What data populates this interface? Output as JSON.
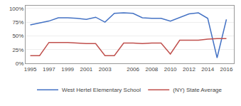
{
  "chart_data": {
    "type": "line",
    "series": [
      {
        "name": "West Hertel Elementary School",
        "color": "#4472c4",
        "x": [
          1995,
          1997,
          1998,
          1999,
          2000,
          2001,
          2002,
          2003,
          2004,
          2005,
          2006,
          2007,
          2008,
          2009,
          2010,
          2011,
          2012,
          2013,
          2014,
          2015,
          2016
        ],
        "values": [
          70,
          77,
          83,
          83,
          82,
          80,
          84,
          75,
          91,
          92,
          91,
          83,
          82,
          82,
          77,
          83,
          90,
          92,
          82,
          10,
          80
        ]
      },
      {
        "name": "(NY) State Average",
        "color": "#c0504d",
        "x": [
          1995,
          1996,
          1997,
          1998,
          1999,
          2000,
          2001,
          2002,
          2003,
          2004,
          2005,
          2006,
          2007,
          2008,
          2009,
          2010,
          2011,
          2012,
          2013,
          2014,
          2015,
          2016
        ],
        "values": [
          14,
          14,
          38,
          38,
          38,
          37,
          36,
          36,
          14,
          14,
          37,
          37,
          36,
          37,
          37,
          17,
          42,
          42,
          42,
          44,
          45,
          45
        ]
      }
    ],
    "xlim": [
      1994.5,
      2016.8
    ],
    "xticks": [
      1995,
      1997,
      1999,
      2001,
      2003,
      2006,
      2008,
      2010,
      2012,
      2014,
      2016
    ],
    "ylim": [
      0,
      105
    ],
    "yticks": [
      {
        "value": 0,
        "label": "0%"
      },
      {
        "value": 25,
        "label": "25%"
      },
      {
        "value": 50,
        "label": "50%"
      },
      {
        "value": 75,
        "label": "75%"
      },
      {
        "value": 100,
        "label": "100%"
      }
    ],
    "grid": true,
    "legend": "bottom"
  }
}
